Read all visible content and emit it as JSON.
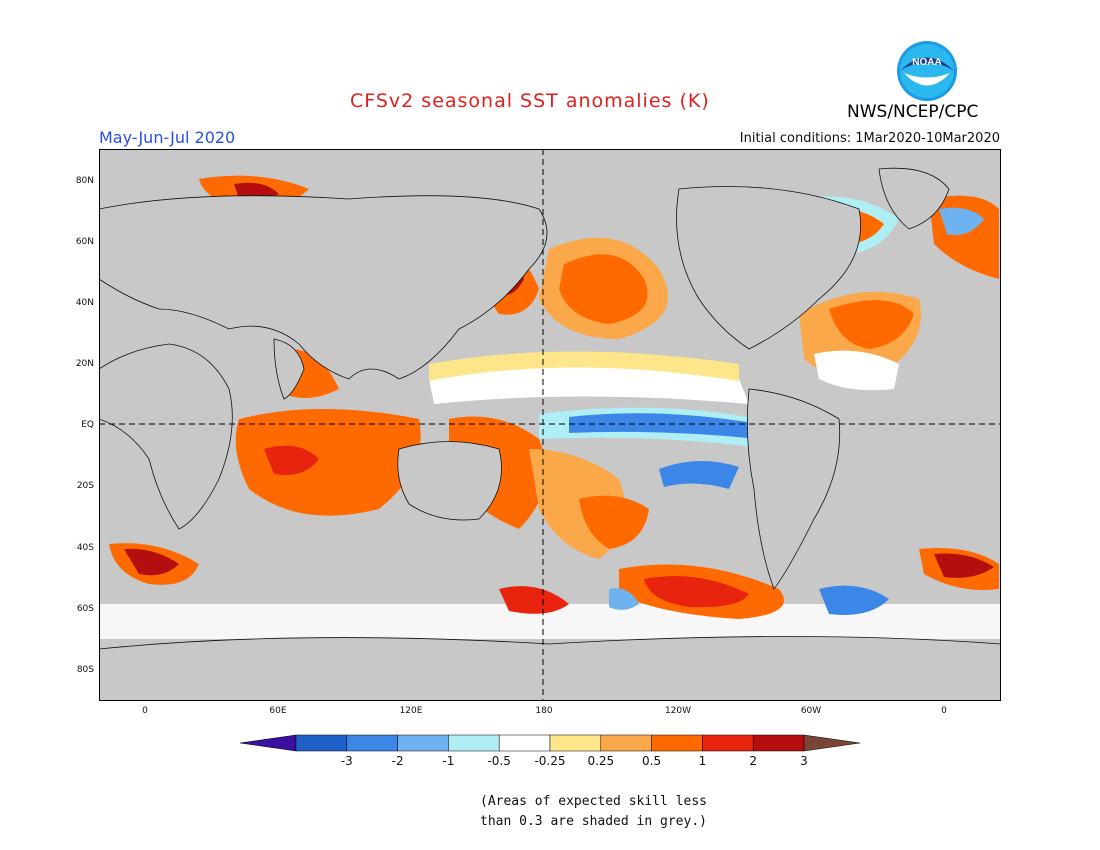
{
  "title": "CFSv2 seasonal SST anomalies (K)",
  "season": "May-Jun-Jul 2020",
  "initial_conditions": "Initial conditions: 1Mar2020-10Mar2020",
  "agency": "NWS/NCEP/CPC",
  "logo_text": "NOAA",
  "lat_labels": [
    "80N",
    "60N",
    "40N",
    "20N",
    "EQ",
    "20S",
    "40S",
    "60S",
    "80S"
  ],
  "lon_labels": [
    "0",
    "60E",
    "120E",
    "180",
    "120W",
    "60W",
    "0"
  ],
  "colorbar": {
    "ticks": [
      "-3",
      "-2",
      "-1",
      "-0.5",
      "-0.25",
      "0.25",
      "0.5",
      "1",
      "2",
      "3"
    ],
    "colors": [
      "#3b0fa0",
      "#1f5fc8",
      "#3b86e6",
      "#6fb2f0",
      "#aeeef4",
      "#ffffff",
      "#fde68a",
      "#fba84a",
      "#ff6a00",
      "#e8230e",
      "#b50e0e",
      "#7a4536"
    ]
  },
  "note_line1": "(Areas of expected skill less",
  "note_line2": "than 0.3 are shaded in grey.)",
  "colors": {
    "land": "#c8c8c8",
    "ocean_grey": "#c8c8c8",
    "title": "#e0201e",
    "season": "#2a4fe0"
  }
}
